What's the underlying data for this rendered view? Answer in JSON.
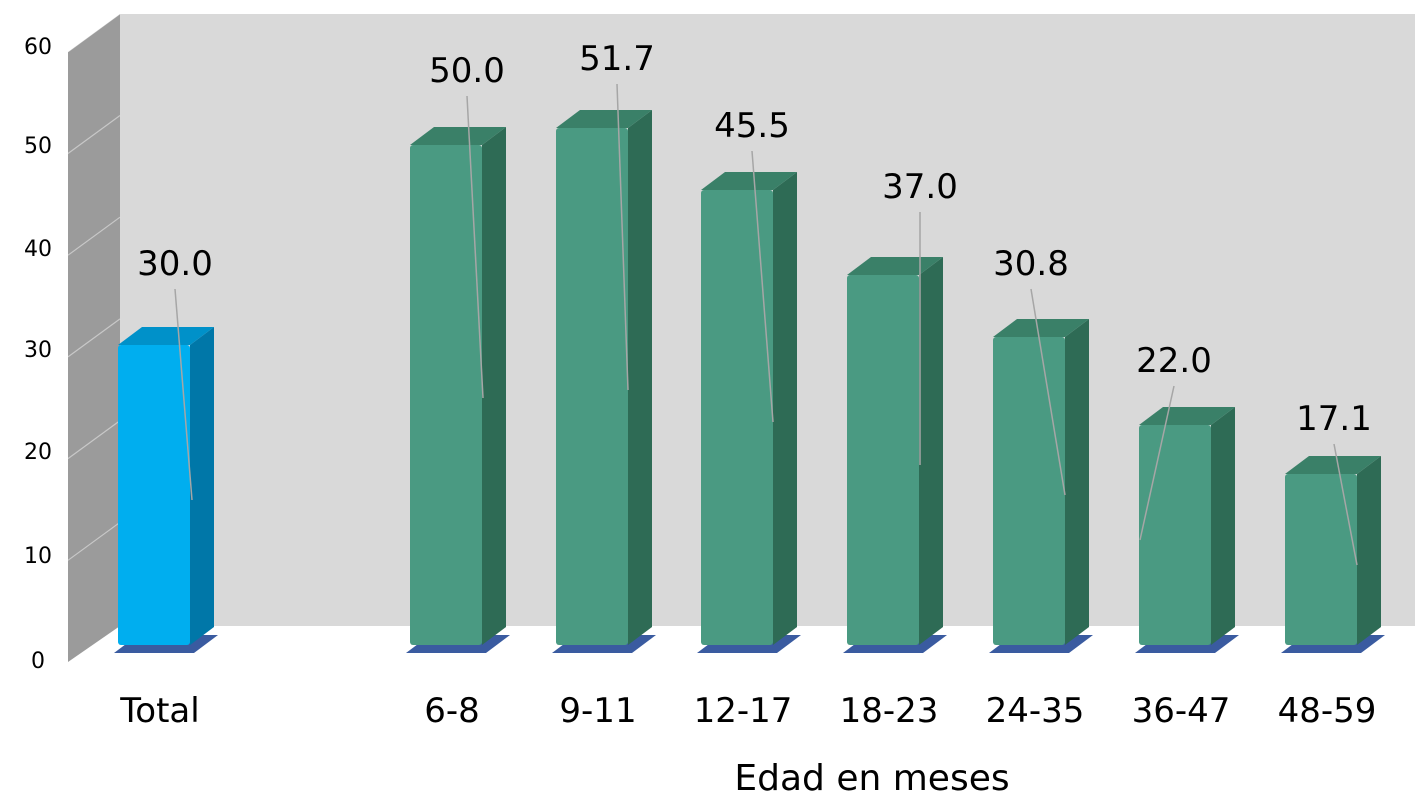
{
  "chart_data": {
    "type": "bar",
    "categories": [
      "Total",
      "6-8",
      "9-11",
      "12-17",
      "18-23",
      "24-35",
      "36-47",
      "48-59"
    ],
    "values": [
      30.0,
      50.0,
      51.7,
      45.5,
      37.0,
      30.8,
      22.0,
      17.1
    ],
    "data_labels": [
      "30.0",
      "50.0",
      "51.7",
      "45.5",
      "37.0",
      "30.8",
      "22.0",
      "17.1"
    ],
    "xlabel": "Edad en meses",
    "ylabel": "",
    "ylim": [
      0,
      60
    ],
    "yticks": [
      "0",
      "10",
      "20",
      "30",
      "40",
      "50",
      "60"
    ],
    "grid": false,
    "legend": "none",
    "style": "3d-column",
    "colors": {
      "total_front": "#00AEEF",
      "total_side": "#0077A8",
      "total_top": "#0091C9",
      "bar_front": "#4A9A82",
      "bar_side": "#2E6B55",
      "bar_top": "#3A8068",
      "back_wall": "#D9D9D9",
      "side_wall": "#9B9B9B",
      "floor_shadow": "#3A5BA0",
      "leader_line": "#A6A6A6"
    }
  }
}
